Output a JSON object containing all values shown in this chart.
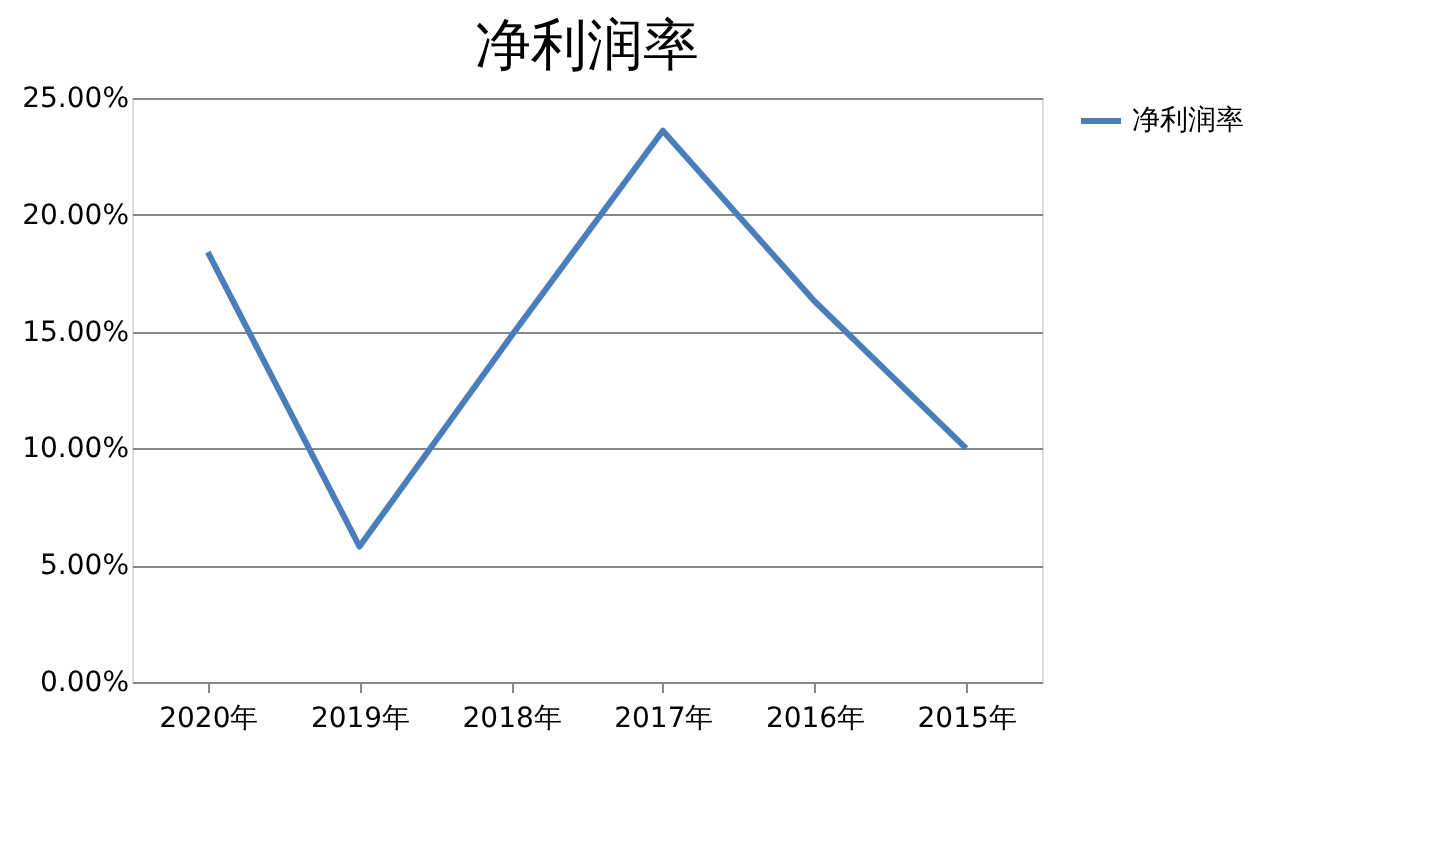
{
  "chart_data": {
    "type": "line",
    "title": "净利润率",
    "categories": [
      "2020年",
      "2019年",
      "2018年",
      "2017年",
      "2016年",
      "2015年"
    ],
    "series": [
      {
        "name": "净利润率",
        "color": "#4a7ebb",
        "values": [
          18.4,
          5.8,
          14.8,
          23.6,
          16.3,
          10.0
        ]
      }
    ],
    "ylim": [
      0,
      25
    ],
    "yticks": [
      {
        "value": 0,
        "label": "0.00%"
      },
      {
        "value": 5,
        "label": "5.00%"
      },
      {
        "value": 10,
        "label": "10.00%"
      },
      {
        "value": 15,
        "label": "15.00%"
      },
      {
        "value": 20,
        "label": "20.00%"
      },
      {
        "value": 25,
        "label": "25.00%"
      }
    ],
    "grid": "y",
    "legend": "right",
    "marker": "none",
    "line_style": "solid"
  }
}
